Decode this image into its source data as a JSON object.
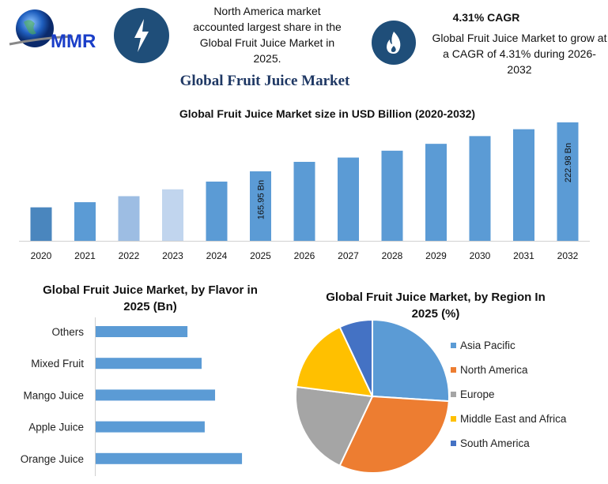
{
  "header": {
    "logo_text": "MMR",
    "info_left": "North America market accounted largest share in the Global Fruit Juice Market in 2025.",
    "cagr_title": "4.31% CAGR",
    "info_right": "Global Fruit Juice Market to grow at a CAGR of 4.31% during 2026-2032",
    "main_title": "Global Fruit Juice Market",
    "icon_left": "lightning-icon",
    "icon_right": "flame-icon",
    "icon_color": "#1f4e79"
  },
  "chart_data": [
    {
      "type": "bar",
      "title": "Global Fruit Juice Market size in USD Billion (2020-2032)",
      "categories": [
        "2020",
        "2021",
        "2022",
        "2023",
        "2024",
        "2025",
        "2026",
        "2027",
        "2028",
        "2029",
        "2030",
        "2031",
        "2032"
      ],
      "values": [
        124,
        130,
        137,
        145,
        154,
        165.95,
        177,
        182,
        190,
        198,
        207,
        215,
        222.98
      ],
      "data_labels": {
        "2025": "165.95 Bn",
        "2032": "222.98 Bn"
      },
      "colors": [
        "#4a86be",
        "#5b9bd5",
        "#9dbde3",
        "#c1d5ee",
        "#5b9bd5",
        "#5b9bd5",
        "#5b9bd5",
        "#5b9bd5",
        "#5b9bd5",
        "#5b9bd5",
        "#5b9bd5",
        "#5b9bd5",
        "#5b9bd5"
      ],
      "ylim": [
        85,
        230
      ],
      "grid": false
    },
    {
      "type": "bar",
      "orientation": "horizontal",
      "title": "Global Fruit Juice  Market, by Flavor in 2025 (Bn)",
      "categories": [
        "Others",
        "Mixed Fruit",
        "Mango Juice",
        "Apple Juice",
        "Orange Juice"
      ],
      "values": [
        26.6,
        30.7,
        34.6,
        31.6,
        42.4
      ],
      "color": "#5b9bd5",
      "grid": false
    },
    {
      "type": "pie",
      "title": "Global Fruit Juice Market, by Region In 2025 (%)",
      "categories": [
        "Asia Pacific",
        "North America",
        "Europe",
        "Middle East and Africa",
        "South America"
      ],
      "values": [
        26,
        31,
        20,
        16,
        7
      ],
      "colors": [
        "#5b9bd5",
        "#ed7d31",
        "#a5a5a5",
        "#ffc000",
        "#4472c4"
      ],
      "legend": "right"
    }
  ]
}
